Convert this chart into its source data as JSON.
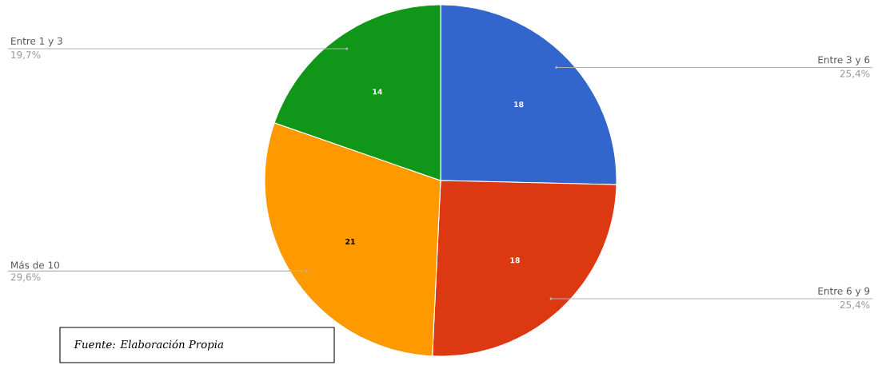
{
  "chart_data": {
    "type": "pie",
    "categories": [
      "Entre 3 y 6",
      "Entre 6 y 9",
      "Más de 10",
      "Entre 1 y 3"
    ],
    "values": [
      25.4,
      25.4,
      29.6,
      19.7
    ],
    "colors": [
      "#3366cc",
      "#dc3912",
      "#ff9900",
      "#109618"
    ],
    "value_labels": [
      "25,4%",
      "25,4%",
      "29,6%",
      "19,7%"
    ],
    "annotations": [
      {
        "text": "18",
        "x": "Entre 3 y 6"
      },
      {
        "text": "18",
        "x": "Entre 6 y 9"
      },
      {
        "text": "21",
        "x": "Más de 10"
      },
      {
        "text": "14",
        "x": "Entre 1 y 3"
      },
      "Fuente: Elaboración Propia"
    ]
  }
}
